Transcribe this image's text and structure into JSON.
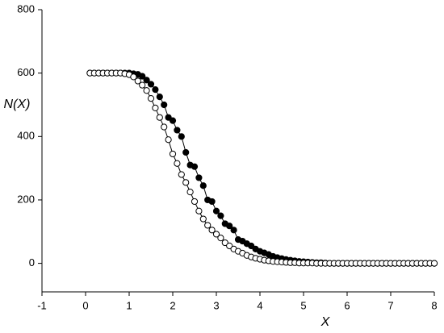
{
  "chart_data": {
    "type": "scatter",
    "x_label": "X",
    "y_label": "N(X)",
    "xlim": [
      -1,
      8
    ],
    "xticks": [
      -1,
      0,
      1,
      2,
      3,
      4,
      5,
      6,
      7,
      8
    ],
    "ylim": [
      -90,
      800
    ],
    "yticks": [
      0,
      200,
      400,
      600,
      800
    ],
    "line_color": "#000000",
    "x": [
      0.1,
      0.2,
      0.3,
      0.4,
      0.5,
      0.6,
      0.7,
      0.8,
      0.9,
      1.0,
      1.1,
      1.2,
      1.3,
      1.4,
      1.5,
      1.6,
      1.7,
      1.8,
      1.9,
      2.0,
      2.1,
      2.2,
      2.3,
      2.4,
      2.5,
      2.6,
      2.7,
      2.8,
      2.9,
      3.0,
      3.1,
      3.2,
      3.3,
      3.4,
      3.5,
      3.6,
      3.7,
      3.8,
      3.9,
      4.0,
      4.1,
      4.2,
      4.3,
      4.4,
      4.5,
      4.6,
      4.7,
      4.8,
      4.9,
      5.0,
      5.1,
      5.2,
      5.3,
      5.4,
      5.5,
      5.6,
      5.7,
      5.8,
      5.9,
      6.0,
      6.1,
      6.2,
      6.3,
      6.4,
      6.5,
      6.6,
      6.7,
      6.8,
      6.9,
      7.0,
      7.1,
      7.2,
      7.3,
      7.4,
      7.5,
      7.6,
      7.7,
      7.8,
      7.9,
      8.0
    ],
    "series": [
      {
        "color": "#000000",
        "values": [
          600,
          600,
          600,
          600,
          600,
          600,
          600,
          600,
          600,
          600,
          598,
          596,
          590,
          578,
          565,
          548,
          525,
          500,
          460,
          450,
          420,
          400,
          350,
          310,
          305,
          270,
          245,
          200,
          195,
          165,
          150,
          125,
          118,
          105,
          75,
          70,
          62,
          55,
          45,
          38,
          33,
          28,
          22,
          18,
          15,
          12,
          10,
          8,
          6,
          5,
          4,
          3,
          2,
          2,
          1,
          0,
          0,
          0,
          0,
          0,
          0,
          0,
          0,
          0,
          0,
          0,
          0,
          0,
          0,
          0,
          0,
          0,
          0,
          0,
          0,
          0,
          0,
          0,
          0,
          0
        ]
      },
      {
        "color": "#ffffff",
        "values": [
          600,
          600,
          600,
          600,
          600,
          600,
          600,
          600,
          598,
          595,
          588,
          575,
          562,
          545,
          520,
          490,
          460,
          430,
          390,
          345,
          315,
          280,
          255,
          225,
          195,
          165,
          140,
          120,
          105,
          92,
          80,
          65,
          55,
          45,
          38,
          32,
          25,
          20,
          16,
          13,
          10,
          8,
          6,
          5,
          4,
          3,
          2,
          2,
          1,
          1,
          1,
          1,
          0,
          0,
          0,
          0,
          0,
          0,
          0,
          0,
          0,
          0,
          0,
          0,
          0,
          0,
          0,
          0,
          0,
          0,
          0,
          0,
          0,
          0,
          0,
          0,
          0,
          0,
          0,
          0
        ]
      }
    ]
  }
}
